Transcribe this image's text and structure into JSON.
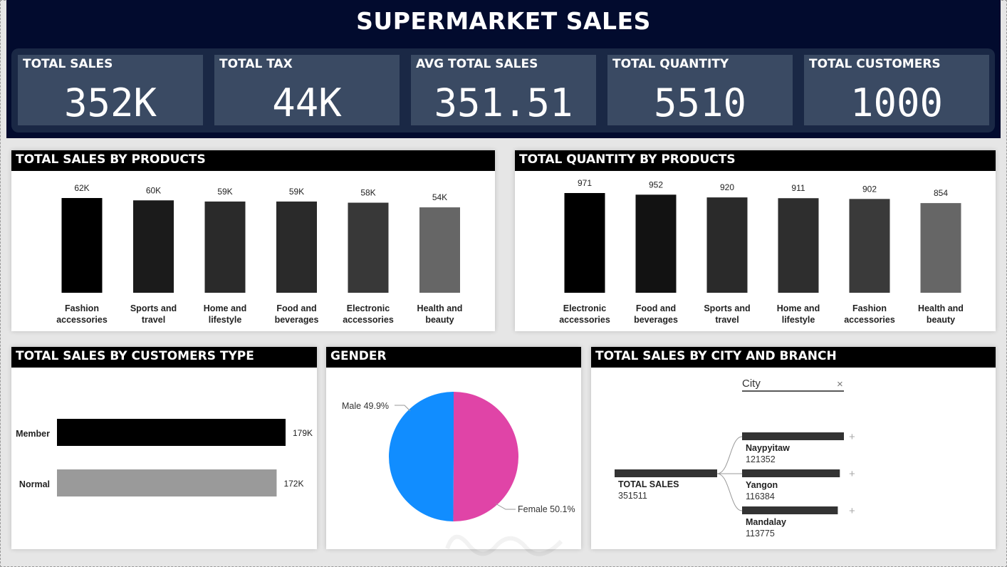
{
  "title": "SUPERMARKET SALES",
  "kpis": [
    {
      "label": "TOTAL SALES",
      "value": "352K"
    },
    {
      "label": "TOTAL TAX",
      "value": "44K"
    },
    {
      "label": "AVG TOTAL SALES",
      "value": "351.51"
    },
    {
      "label": "TOTAL QUANTITY",
      "value": "5510"
    },
    {
      "label": "TOTAL CUSTOMERS",
      "value": "1000"
    }
  ],
  "panels": {
    "sales_by_products": "TOTAL SALES BY PRODUCTS",
    "quantity_by_products": "TOTAL QUANTITY BY PRODUCTS",
    "sales_by_customer_type": "TOTAL SALES BY CUSTOMERS TYPE",
    "gender": "GENDER",
    "city_branch": "TOTAL SALES BY CITY AND BRANCH"
  },
  "colors": {
    "header_bg": "#020b2e",
    "kpi_card": "#3a4a63",
    "male": "#118dff",
    "female": "#e044a7"
  },
  "chart_data": [
    {
      "type": "bar",
      "id": "sales_by_products",
      "categories": [
        [
          "Fashion",
          "accessories"
        ],
        [
          "Sports and",
          "travel"
        ],
        [
          "Home and",
          "lifestyle"
        ],
        [
          "Food and",
          "beverages"
        ],
        [
          "Electronic",
          "accessories"
        ],
        [
          "Health and",
          "beauty"
        ]
      ],
      "values": [
        62,
        60,
        59,
        59,
        58,
        54
      ],
      "data_labels": [
        "62K",
        "60K",
        "59K",
        "59K",
        "58K",
        "54K"
      ],
      "bar_colors": [
        "#000000",
        "#1b1b1b",
        "#2a2a2a",
        "#2a2a2a",
        "#383838",
        "#666666"
      ]
    },
    {
      "type": "bar",
      "id": "quantity_by_products",
      "categories": [
        [
          "Electronic",
          "accessories"
        ],
        [
          "Food and",
          "beverages"
        ],
        [
          "Sports and",
          "travel"
        ],
        [
          "Home and",
          "lifestyle"
        ],
        [
          "Fashion",
          "accessories"
        ],
        [
          "Health and",
          "beauty"
        ]
      ],
      "values": [
        971,
        952,
        920,
        911,
        902,
        854
      ],
      "data_labels": [
        "971",
        "952",
        "920",
        "911",
        "902",
        "854"
      ],
      "bar_colors": [
        "#000000",
        "#121212",
        "#2a2a2a",
        "#2e2e2e",
        "#3a3a3a",
        "#666666"
      ]
    },
    {
      "type": "bar",
      "id": "sales_by_customer_type",
      "orientation": "horizontal",
      "categories": [
        "Member",
        "Normal"
      ],
      "values": [
        179,
        172
      ],
      "data_labels": [
        "179K",
        "172K"
      ],
      "bar_colors": [
        "#000000",
        "#9a9a9a"
      ]
    },
    {
      "type": "pie",
      "id": "gender",
      "slices": [
        {
          "label": "Male 49.9%",
          "value": 49.9,
          "color": "#118dff"
        },
        {
          "label": "Female 50.1%",
          "value": 50.1,
          "color": "#e044a7"
        }
      ]
    }
  ],
  "decomposition_tree": {
    "filter_label": "City",
    "clear_icon": "close-icon",
    "root": {
      "label": "TOTAL SALES",
      "value": "351511"
    },
    "children": [
      {
        "label": "Naypyitaw",
        "value": "121352",
        "fraction": 1.0
      },
      {
        "label": "Yangon",
        "value": "116384",
        "fraction": 0.96
      },
      {
        "label": "Mandalay",
        "value": "113775",
        "fraction": 0.94
      }
    ],
    "expand_symbol": "+"
  },
  "watermark": "خمسات"
}
